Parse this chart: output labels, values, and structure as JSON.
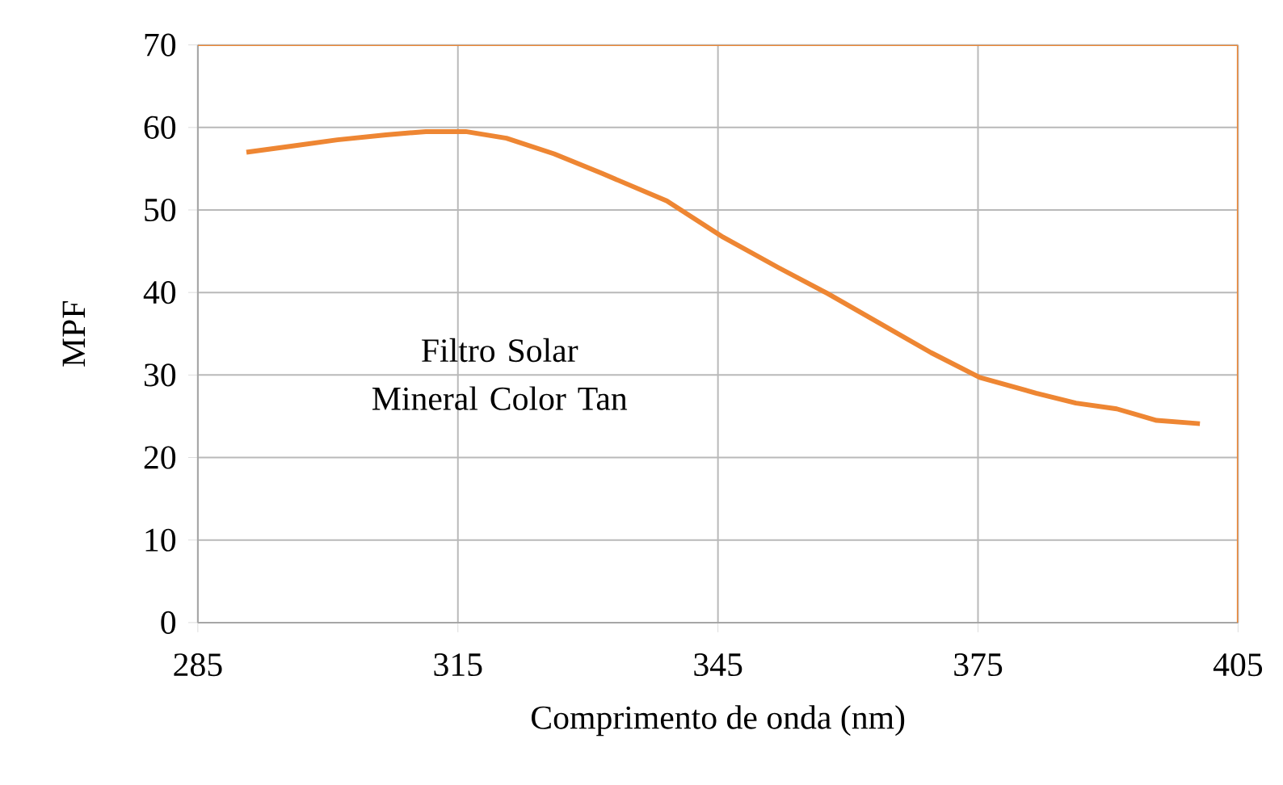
{
  "chart_data": {
    "type": "line",
    "xlabel": "Comprimento de onda (nm)",
    "ylabel": "MPF",
    "annotations": [
      "Filtro Solar Mineral Color Tan"
    ],
    "xlim": [
      285,
      405
    ],
    "xticks": [
      285,
      315,
      345,
      375,
      405
    ],
    "ylim": [
      0,
      70
    ],
    "yticks": [
      0,
      10,
      20,
      30,
      40,
      50,
      60,
      70
    ],
    "grid": true,
    "series": [
      {
        "color": "#ee8633",
        "x": [
          290.6,
          295.6,
          301.1,
          306.7,
          311.3,
          315.9,
          320.6,
          326.1,
          331.7,
          339.1,
          345.6,
          352.0,
          357.6,
          363.1,
          369.6,
          375.2,
          381.7,
          386.3,
          391.0,
          395.6,
          400.6
        ],
        "values": [
          57.0,
          57.7,
          58.5,
          59.1,
          59.5,
          59.5,
          58.7,
          56.8,
          54.4,
          51.1,
          46.7,
          43.0,
          39.9,
          36.6,
          32.7,
          29.7,
          27.8,
          26.6,
          25.9,
          24.5,
          24.1
        ]
      }
    ]
  }
}
